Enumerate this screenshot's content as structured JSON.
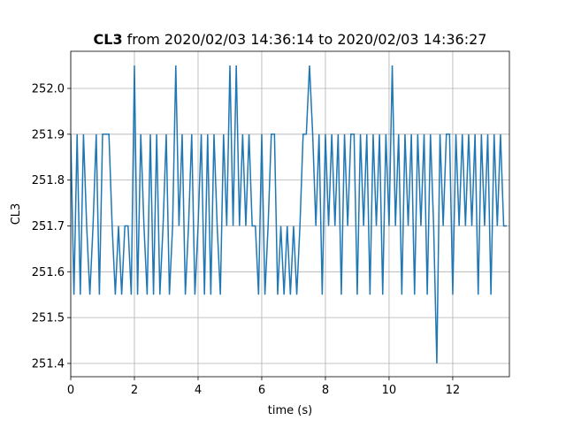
{
  "chart_data": {
    "type": "line",
    "title_parts": [
      "CL3",
      "from 2020/02/03 14:36:14 to 2020/02/03 14:36:27"
    ],
    "xlabel": "time (s)",
    "ylabel": "CL3",
    "x": [
      0.0,
      0.1,
      0.2,
      0.3,
      0.4,
      0.5,
      0.6,
      0.7,
      0.8,
      0.9,
      1.0,
      1.1,
      1.2,
      1.3,
      1.4,
      1.5,
      1.6,
      1.7,
      1.8,
      1.9,
      2.0,
      2.1,
      2.2,
      2.3,
      2.4,
      2.5,
      2.6,
      2.7,
      2.8,
      2.9,
      3.0,
      3.1,
      3.2,
      3.3,
      3.4,
      3.5,
      3.6,
      3.7,
      3.8,
      3.9,
      4.0,
      4.1,
      4.2,
      4.3,
      4.4,
      4.5,
      4.6,
      4.7,
      4.8,
      4.9,
      5.0,
      5.1,
      5.2,
      5.3,
      5.4,
      5.5,
      5.6,
      5.7,
      5.8,
      5.9,
      6.0,
      6.1,
      6.2,
      6.3,
      6.4,
      6.5,
      6.6,
      6.7,
      6.8,
      6.9,
      7.0,
      7.1,
      7.2,
      7.3,
      7.4,
      7.5,
      7.6,
      7.7,
      7.8,
      7.9,
      8.0,
      8.1,
      8.2,
      8.3,
      8.4,
      8.5,
      8.6,
      8.7,
      8.8,
      8.9,
      9.0,
      9.1,
      9.2,
      9.3,
      9.4,
      9.5,
      9.6,
      9.7,
      9.8,
      9.9,
      10.0,
      10.1,
      10.2,
      10.3,
      10.4,
      10.5,
      10.6,
      10.7,
      10.8,
      10.9,
      11.0,
      11.1,
      11.2,
      11.3,
      11.4,
      11.5,
      11.6,
      11.7,
      11.8,
      11.9,
      12.0,
      12.1,
      12.2,
      12.3,
      12.4,
      12.5,
      12.6,
      12.7,
      12.8,
      12.9,
      13.0,
      13.1,
      13.2,
      13.3,
      13.4,
      13.5,
      13.6,
      13.7
    ],
    "series": [
      {
        "name": "CL3",
        "color": "#1f77b4",
        "values": [
          251.9,
          251.55,
          251.9,
          251.55,
          251.9,
          251.7,
          251.55,
          251.7,
          251.9,
          251.55,
          251.9,
          251.9,
          251.9,
          251.7,
          251.55,
          251.7,
          251.55,
          251.7,
          251.7,
          251.55,
          252.05,
          251.55,
          251.9,
          251.7,
          251.55,
          251.9,
          251.55,
          251.9,
          251.55,
          251.7,
          251.9,
          251.55,
          251.7,
          252.05,
          251.7,
          251.9,
          251.55,
          251.7,
          251.9,
          251.55,
          251.7,
          251.9,
          251.55,
          251.9,
          251.55,
          251.9,
          251.7,
          251.55,
          251.9,
          251.7,
          252.05,
          251.7,
          252.05,
          251.7,
          251.9,
          251.7,
          251.9,
          251.7,
          251.7,
          251.55,
          251.9,
          251.55,
          251.7,
          251.9,
          251.9,
          251.55,
          251.7,
          251.55,
          251.7,
          251.55,
          251.7,
          251.55,
          251.7,
          251.9,
          251.9,
          252.05,
          251.9,
          251.7,
          251.9,
          251.55,
          251.9,
          251.7,
          251.9,
          251.7,
          251.9,
          251.55,
          251.9,
          251.7,
          251.9,
          251.9,
          251.55,
          251.9,
          251.7,
          251.9,
          251.55,
          251.9,
          251.7,
          251.9,
          251.55,
          251.9,
          251.7,
          252.05,
          251.7,
          251.9,
          251.55,
          251.9,
          251.7,
          251.9,
          251.55,
          251.9,
          251.7,
          251.9,
          251.55,
          251.9,
          251.7,
          251.4,
          251.9,
          251.7,
          251.9,
          251.9,
          251.55,
          251.9,
          251.7,
          251.9,
          251.7,
          251.9,
          251.7,
          251.9,
          251.55,
          251.9,
          251.7,
          251.9,
          251.55,
          251.9,
          251.7,
          251.9,
          251.7,
          251.7
        ]
      }
    ],
    "xlim": [
      0,
      13.78
    ],
    "ylim": [
      251.371,
      252.081
    ],
    "xticks": [
      0,
      2,
      4,
      6,
      8,
      10,
      12
    ],
    "yticks": [
      251.4,
      251.5,
      251.6,
      251.7,
      251.8,
      251.9,
      {
        "value": 252,
        "label": "252.0"
      }
    ],
    "grid": true
  }
}
